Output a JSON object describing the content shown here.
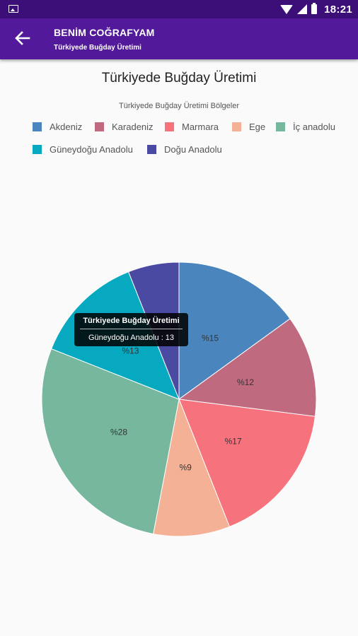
{
  "status_bar": {
    "time": "18:21"
  },
  "app_bar": {
    "title": "BENİM COĞRAFYAM",
    "subtitle": "Türkiyede Buğday Üretimi"
  },
  "chart_data": {
    "type": "pie",
    "title": "Türkiyede Buğday Üretimi",
    "legend_title": "Türkiyede Buğday Üretimi Bölgeler",
    "legend_position": "top",
    "categories": [
      "Akdeniz",
      "Karadeniz",
      "Marmara",
      "Ege",
      "İç anadolu",
      "Güneydoğu Anadolu",
      "Doğu Anadolu"
    ],
    "values": [
      15,
      12,
      17,
      9,
      28,
      13,
      6
    ],
    "labels": [
      "%15",
      "%12",
      "%17",
      "%9",
      "%28",
      "%13",
      ""
    ],
    "colors": [
      "#4a86bd",
      "#c06a7f",
      "#f6737e",
      "#f5b196",
      "#76b79e",
      "#07a9c0",
      "#4b4aa2"
    ]
  },
  "tooltip": {
    "title": "Türkiyede Buğday Üretimi",
    "body": "Güneydoğu Anadolu : 13"
  }
}
